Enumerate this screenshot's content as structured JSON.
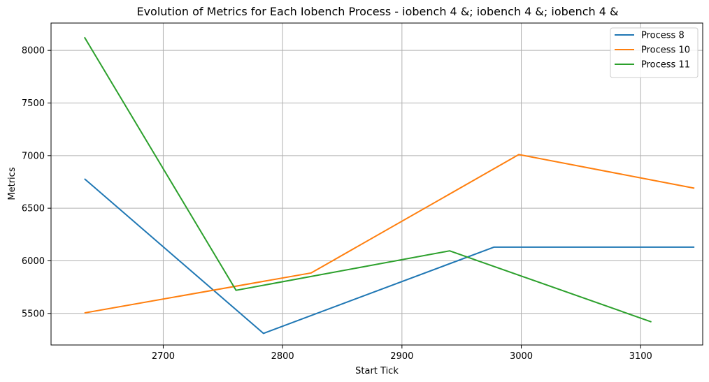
{
  "chart_data": {
    "type": "line",
    "title": "Evolution of Metrics for Each Iobench Process - iobench 4 &; iobench 4 &; iobench 4 &",
    "xlabel": "Start Tick",
    "ylabel": "Metrics",
    "xlim": [
      2606,
      3152
    ],
    "ylim": [
      5200,
      8260
    ],
    "xticks": [
      2700,
      2800,
      2900,
      3000,
      3100
    ],
    "yticks": [
      5500,
      6000,
      6500,
      7000,
      7500,
      8000
    ],
    "grid": true,
    "legend_position": "top-right",
    "series": [
      {
        "name": "Process 8",
        "color": "#1f77b4",
        "points": [
          [
            2634,
            6780
          ],
          [
            2784,
            5310
          ],
          [
            2977,
            6130
          ],
          [
            3145,
            6130
          ]
        ]
      },
      {
        "name": "Process 10",
        "color": "#ff7f0e",
        "points": [
          [
            2634,
            5505
          ],
          [
            2824,
            5885
          ],
          [
            2998,
            7010
          ],
          [
            3145,
            6690
          ]
        ]
      },
      {
        "name": "Process 11",
        "color": "#2ca02c",
        "points": [
          [
            2634,
            8125
          ],
          [
            2761,
            5720
          ],
          [
            2940,
            6095
          ],
          [
            3109,
            5420
          ]
        ]
      }
    ]
  }
}
